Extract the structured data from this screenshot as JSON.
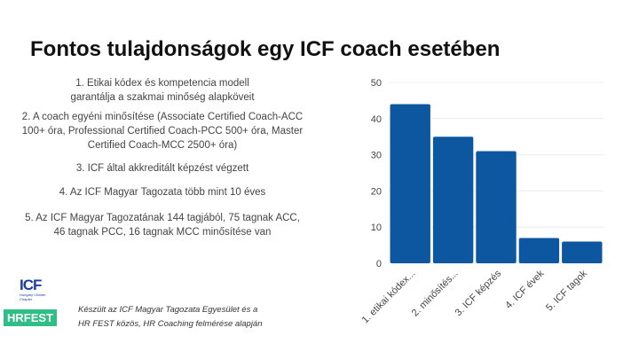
{
  "title": "Fontos tulajdonságok egy ICF coach esetében",
  "items": [
    [
      "1.      Etikai kódex és kompetencia modell",
      "garantálja a szakmai minőség alapköveit"
    ],
    [
      "2. A coach egyéni minősítése (Associate Certified Coach-ACC",
      "100+ óra, Professional Certified Coach-PCC 500+ óra, Master",
      "Certified Coach-MCC 2500+ óra)"
    ],
    [
      "3. ICF által akkreditált képzést végzett"
    ],
    [
      "4. Az ICF Magyar Tagozata több mint 10 éves"
    ],
    [
      "5. Az ICF Magyar Tagozatának 144 tagjából, 75 tagnak ACC,",
      "46 tagnak PCC, 16 tagnak MCC minősítése van"
    ]
  ],
  "logo": {
    "icf": "ICF",
    "sub": "Hungary Charter Chapter",
    "hrfest": "HRFEST"
  },
  "credit": [
    "Készült az ICF Magyar Tagozata Egyesület és a",
    "HR FEST közös, HR Coaching felmérése alapján"
  ],
  "colors": {
    "bar": "#0d56a0",
    "hrfest": "#2fbf86",
    "icf": "#1a3d9e"
  },
  "chart_data": {
    "type": "bar",
    "categories": [
      "1. etikai kódex...",
      "2. minősítés...",
      "3. ICF képzés",
      "4. ICF évek",
      "5. ICF tagok"
    ],
    "values": [
      44,
      35,
      31,
      7,
      6
    ],
    "ylim": [
      0,
      50
    ],
    "yticks": [
      0,
      10,
      20,
      30,
      40,
      50
    ],
    "grid": true
  }
}
